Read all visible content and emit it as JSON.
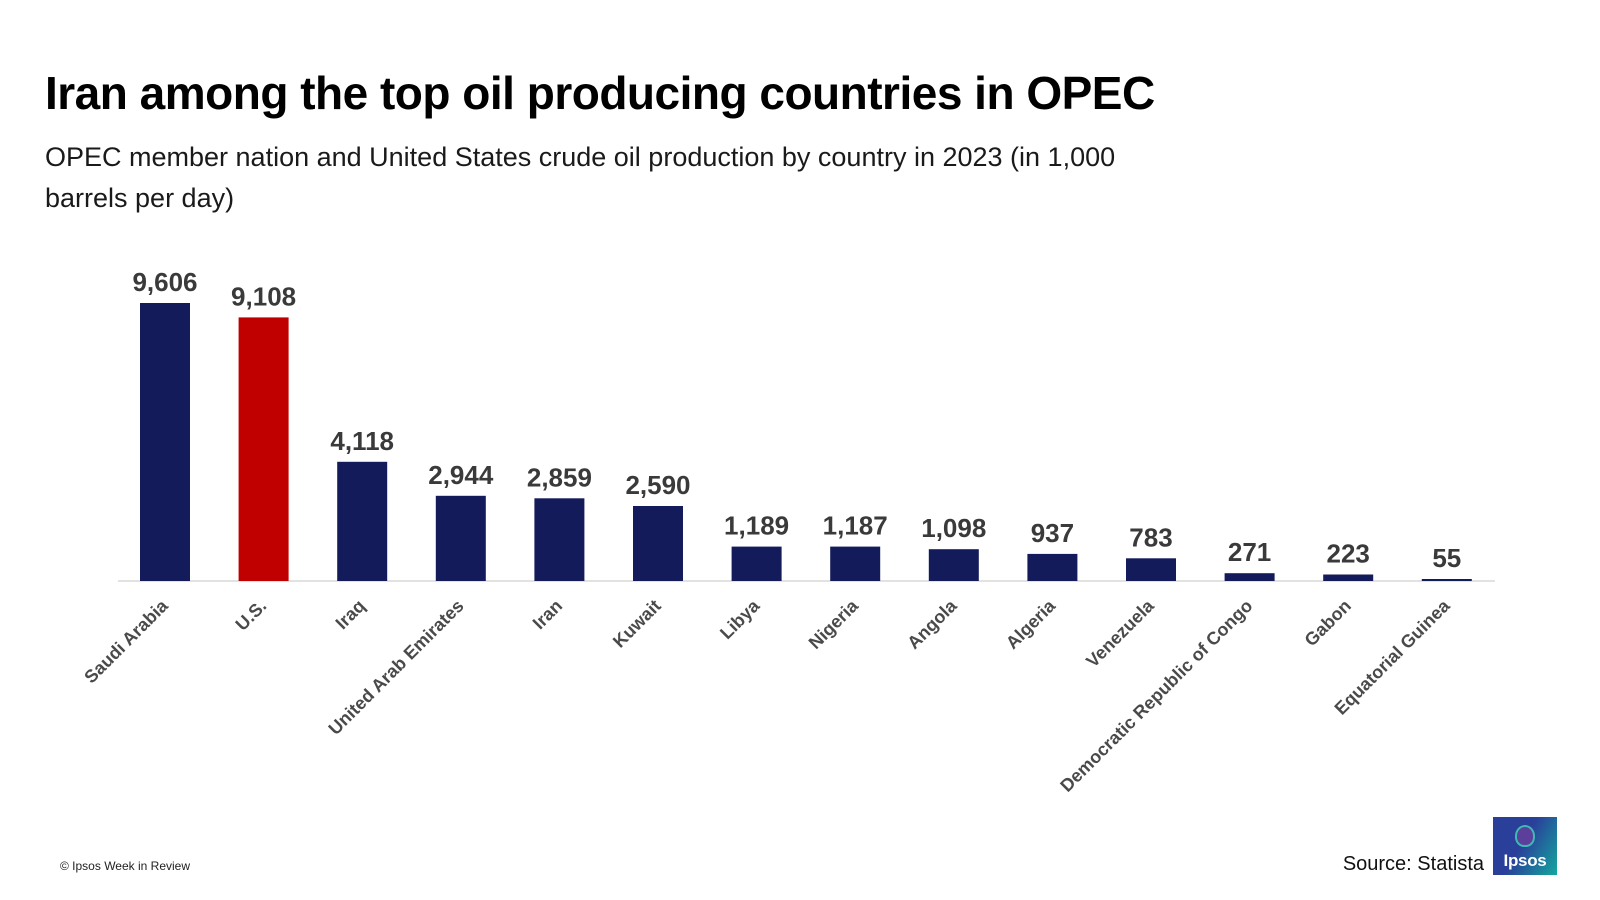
{
  "header": {
    "title": "Iran among the top oil producing countries in OPEC",
    "subtitle": "OPEC member nation and United States crude oil production by country in 2023 (in 1,000 barrels per day)"
  },
  "footer": {
    "copyright": "© Ipsos Week in Review",
    "source": "Source: Statista",
    "logo_text": "Ipsos"
  },
  "colors": {
    "bar_default": "#141b5a",
    "bar_highlight": "#c00000",
    "axis_line": "#d9d9d9",
    "value_label": "#3a3a3a",
    "category_label": "#4a4a4a"
  },
  "chart_data": {
    "type": "bar",
    "title": "Iran among the top oil producing countries in OPEC",
    "subtitle": "OPEC member nation and United States crude oil production by country in 2023 (in 1,000 barrels per day)",
    "xlabel": "",
    "ylabel": "",
    "categories": [
      "Saudi Arabia",
      "U.S.",
      "Iraq",
      "United Arab Emirates",
      "Iran",
      "Kuwait",
      "Libya",
      "Nigeria",
      "Angola",
      "Algeria",
      "Venezuela",
      "Democratic Republic of Congo",
      "Gabon",
      "Equatorial Guinea"
    ],
    "values": [
      9606,
      9108,
      4118,
      2944,
      2859,
      2590,
      1189,
      1187,
      1098,
      937,
      783,
      271,
      223,
      55
    ],
    "value_labels": [
      "9,606",
      "9,108",
      "4,118",
      "2,944",
      "2,859",
      "2,590",
      "1,189",
      "1,187",
      "1,098",
      "937",
      "783",
      "271",
      "223",
      "55"
    ],
    "highlight": "U.S.",
    "ylim": [
      0,
      9606
    ],
    "grid": false,
    "legend": "none"
  }
}
